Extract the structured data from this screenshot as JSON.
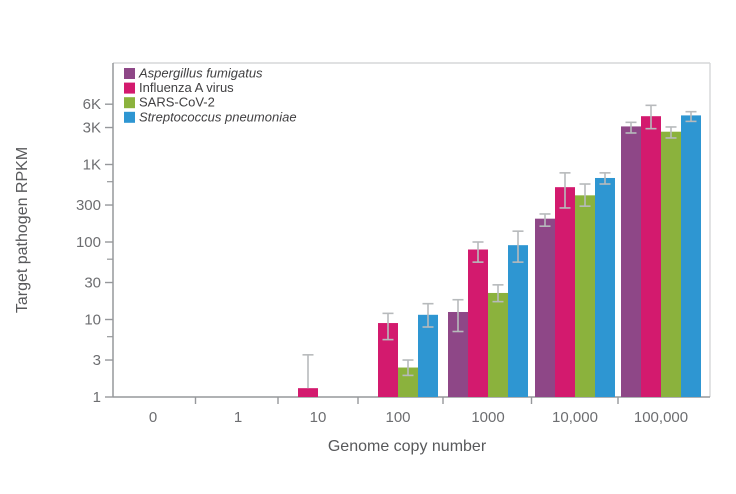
{
  "figure": {
    "background": "#ffffff"
  },
  "chart_data": {
    "type": "bar",
    "title": "",
    "xlabel": "Genome copy number",
    "ylabel": "Target pathogen RPKM",
    "x_tick_labels": [
      "0",
      "1",
      "10",
      "100",
      "1000",
      "10,000",
      "100,000"
    ],
    "y_scale": "log",
    "ylim": [
      1,
      20000
    ],
    "y_ticks": [
      {
        "value": 1,
        "label": "1"
      },
      {
        "value": 3,
        "label": "3"
      },
      {
        "value": 10,
        "label": "10"
      },
      {
        "value": 30,
        "label": "30"
      },
      {
        "value": 100,
        "label": "100"
      },
      {
        "value": 300,
        "label": "300"
      },
      {
        "value": 1000,
        "label": "1K"
      },
      {
        "value": 3000,
        "label": "3K"
      },
      {
        "value": 6000,
        "label": "6K"
      }
    ],
    "y_minor_ticks": [
      6,
      60,
      600
    ],
    "grid": false,
    "legend_position": "top-left-inside",
    "colors": {
      "error_bar": "#b7babc",
      "axis": "#96989b",
      "plot_border": "#d6d7d8",
      "tick_label": "#6d6e71",
      "axis_title": "#58595b",
      "legend_text": "#414042"
    },
    "series": [
      {
        "name": "Aspergillus fumigatus",
        "italic": true,
        "color": "#8e4787",
        "values": [
          null,
          null,
          null,
          null,
          12.5,
          200,
          3100
        ],
        "err_lo": [
          null,
          null,
          null,
          null,
          7,
          160,
          2550
        ],
        "err_hi": [
          null,
          null,
          null,
          null,
          18,
          230,
          3500
        ]
      },
      {
        "name": "Influenza A virus",
        "italic": false,
        "color": "#d31a6e",
        "values": [
          null,
          null,
          1.3,
          9,
          80,
          510,
          4200
        ],
        "err_lo": [
          null,
          null,
          null,
          5.5,
          55,
          275,
          2900
        ],
        "err_hi": [
          null,
          null,
          3.5,
          12,
          100,
          780,
          5800
        ]
      },
      {
        "name": "SARS-CoV-2",
        "italic": false,
        "color": "#8bb23d",
        "values": [
          null,
          null,
          null,
          2.4,
          22,
          400,
          2650
        ],
        "err_lo": [
          null,
          null,
          null,
          1.9,
          17,
          290,
          2200
        ],
        "err_hi": [
          null,
          null,
          null,
          3.0,
          28,
          560,
          3050
        ]
      },
      {
        "name": "Streptococcus pneumoniae",
        "italic": true,
        "color": "#2e96d2",
        "values": [
          null,
          null,
          null,
          11.5,
          91,
          670,
          4300
        ],
        "err_lo": [
          null,
          null,
          null,
          8,
          55,
          560,
          3600
        ],
        "err_hi": [
          null,
          null,
          null,
          16,
          138,
          780,
          4800
        ]
      }
    ]
  }
}
